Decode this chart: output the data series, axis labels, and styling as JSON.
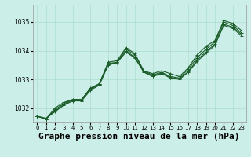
{
  "title": "Graphe pression niveau de la mer (hPa)",
  "bg_color": "#cceee8",
  "grid_color": "#aaddcc",
  "line_color": "#1a5c2a",
  "xlim": [
    -0.5,
    23.5
  ],
  "ylim": [
    1031.5,
    1035.6
  ],
  "yticks": [
    1032,
    1033,
    1034,
    1035
  ],
  "xticks": [
    0,
    1,
    2,
    3,
    4,
    5,
    6,
    7,
    8,
    9,
    10,
    11,
    12,
    13,
    14,
    15,
    16,
    17,
    18,
    19,
    20,
    21,
    22,
    23
  ],
  "series": [
    [
      1031.72,
      1031.62,
      1032.0,
      1032.2,
      1032.3,
      1032.3,
      1032.7,
      1032.85,
      1033.6,
      1033.65,
      1034.1,
      1033.9,
      1033.3,
      1033.2,
      1033.3,
      1033.2,
      1033.1,
      1033.4,
      1033.85,
      1034.15,
      1034.35,
      1035.05,
      1034.95,
      1034.7
    ],
    [
      1031.72,
      1031.62,
      1031.95,
      1032.15,
      1032.3,
      1032.3,
      1032.68,
      1032.85,
      1033.55,
      1033.6,
      1034.05,
      1033.85,
      1033.3,
      1033.15,
      1033.25,
      1033.1,
      1033.05,
      1033.35,
      1033.75,
      1034.05,
      1034.3,
      1035.0,
      1034.88,
      1034.62
    ],
    [
      1031.72,
      1031.62,
      1031.9,
      1032.12,
      1032.27,
      1032.27,
      1032.65,
      1032.82,
      1033.52,
      1033.6,
      1033.98,
      1033.78,
      1033.27,
      1033.12,
      1033.22,
      1033.07,
      1033.02,
      1033.27,
      1033.67,
      1033.97,
      1034.22,
      1034.92,
      1034.82,
      1034.57
    ],
    [
      1031.72,
      1031.65,
      1031.87,
      1032.1,
      1032.25,
      1032.25,
      1032.62,
      1032.8,
      1033.5,
      1033.58,
      1033.95,
      1033.75,
      1033.25,
      1033.1,
      1033.2,
      1033.05,
      1033.0,
      1033.25,
      1033.62,
      1033.92,
      1034.18,
      1034.88,
      1034.78,
      1034.52
    ]
  ],
  "marker": "+",
  "marker_size": 3,
  "linewidth": 0.8,
  "title_fontsize": 8,
  "tick_fontsize": 5.5,
  "xtick_fontsize": 5.0
}
